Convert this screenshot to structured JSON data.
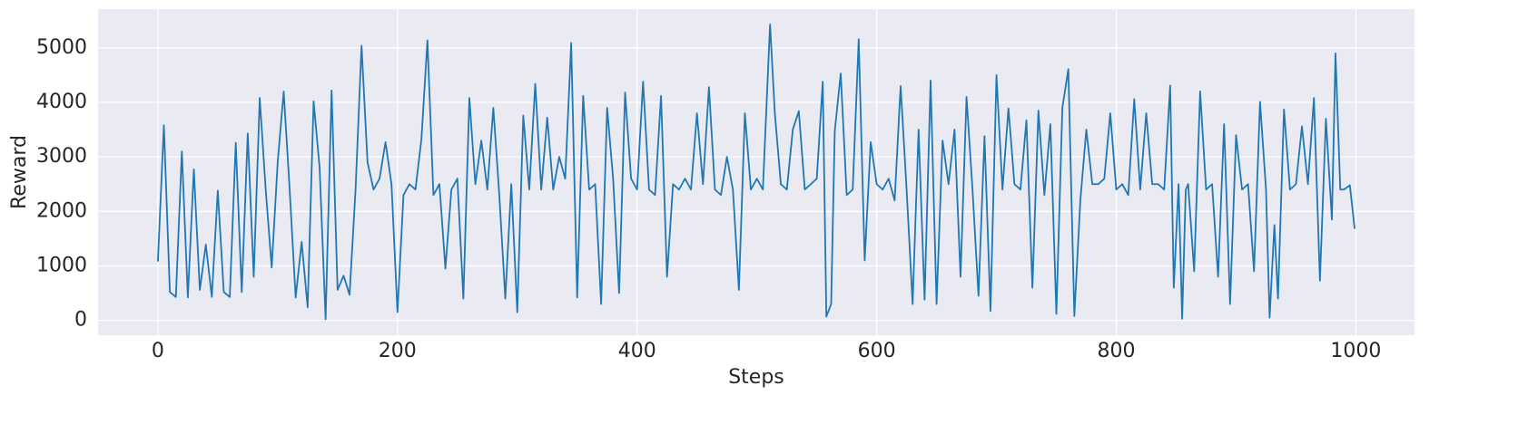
{
  "chart_data": {
    "type": "line",
    "x_label": "Steps",
    "y_label": "Reward",
    "color": "#1f77b4",
    "grid": true,
    "xlim": [
      -49.95,
      1048.95
    ],
    "xticks": [
      0,
      200,
      400,
      600,
      800,
      1000
    ],
    "ylim": [
      -272,
      5712
    ],
    "yticks": [
      0,
      1000,
      2000,
      3000,
      4000,
      5000
    ],
    "x": [
      0,
      5,
      10,
      15,
      20,
      25,
      30,
      35,
      40,
      45,
      50,
      55,
      60,
      65,
      70,
      75,
      80,
      85,
      90,
      95,
      100,
      105,
      110,
      115,
      120,
      125,
      130,
      135,
      140,
      145,
      150,
      155,
      160,
      165,
      170,
      175,
      180,
      185,
      190,
      195,
      200,
      205,
      210,
      215,
      220,
      225,
      230,
      235,
      240,
      245,
      250,
      255,
      260,
      265,
      270,
      275,
      280,
      285,
      290,
      295,
      300,
      305,
      310,
      315,
      320,
      325,
      330,
      335,
      340,
      345,
      350,
      355,
      360,
      365,
      370,
      375,
      380,
      385,
      390,
      395,
      400,
      405,
      410,
      415,
      420,
      425,
      430,
      435,
      440,
      445,
      450,
      455,
      460,
      465,
      470,
      475,
      480,
      485,
      490,
      495,
      500,
      505,
      511,
      515,
      520,
      525,
      530,
      535,
      540,
      545,
      550,
      555,
      558,
      562,
      565,
      570,
      575,
      580,
      585,
      590,
      595,
      600,
      605,
      610,
      615,
      620,
      625,
      630,
      635,
      640,
      645,
      650,
      655,
      660,
      665,
      670,
      675,
      680,
      685,
      690,
      695,
      700,
      705,
      710,
      715,
      720,
      725,
      730,
      735,
      740,
      745,
      750,
      755,
      760,
      765,
      770,
      775,
      780,
      785,
      790,
      795,
      800,
      805,
      810,
      815,
      820,
      825,
      830,
      835,
      840,
      845,
      848,
      852,
      855,
      858,
      860,
      865,
      870,
      875,
      880,
      885,
      890,
      895,
      900,
      905,
      910,
      915,
      920,
      925,
      928,
      932,
      935,
      940,
      945,
      950,
      955,
      960,
      965,
      970,
      975,
      980,
      983,
      987,
      990,
      995,
      999
    ],
    "values": [
      1080,
      3580,
      520,
      430,
      3100,
      420,
      2770,
      560,
      1390,
      430,
      2380,
      520,
      430,
      3260,
      520,
      3430,
      800,
      4080,
      2400,
      970,
      2900,
      4200,
      2400,
      420,
      1440,
      240,
      4020,
      2800,
      20,
      4220,
      560,
      820,
      470,
      2400,
      5040,
      2900,
      2400,
      2600,
      3270,
      2500,
      150,
      2300,
      2500,
      2400,
      3330,
      5140,
      2300,
      2500,
      950,
      2400,
      2600,
      400,
      4080,
      2500,
      3300,
      2400,
      3900,
      2300,
      400,
      2500,
      150,
      3760,
      2400,
      4340,
      2400,
      3720,
      2400,
      3000,
      2600,
      5090,
      420,
      4120,
      2400,
      2500,
      300,
      3900,
      2600,
      500,
      4180,
      2600,
      2400,
      4380,
      2400,
      2300,
      4120,
      800,
      2500,
      2400,
      2600,
      2400,
      3800,
      2500,
      4280,
      2400,
      2300,
      3000,
      2400,
      560,
      3800,
      2400,
      2600,
      2400,
      5430,
      3800,
      2500,
      2400,
      3500,
      3840,
      2400,
      2500,
      2600,
      4380,
      70,
      300,
      3470,
      4530,
      2300,
      2400,
      5160,
      1100,
      3270,
      2500,
      2400,
      2600,
      2200,
      4300,
      2400,
      300,
      3500,
      380,
      4400,
      300,
      3300,
      2500,
      3500,
      800,
      4100,
      2400,
      450,
      3380,
      170,
      4500,
      2400,
      3890,
      2500,
      2400,
      3670,
      600,
      3850,
      2300,
      3600,
      120,
      3900,
      4610,
      80,
      2200,
      3500,
      2500,
      2500,
      2600,
      3800,
      2400,
      2500,
      2300,
      4060,
      2400,
      3800,
      2500,
      2500,
      2400,
      4310,
      600,
      2500,
      30,
      2400,
      2500,
      900,
      4200,
      2400,
      2500,
      800,
      3600,
      300,
      3400,
      2400,
      2500,
      900,
      4010,
      2400,
      50,
      1750,
      400,
      3870,
      2400,
      2500,
      3560,
      2500,
      4080,
      730,
      3700,
      1850,
      4900,
      2400,
      2400,
      2480,
      1680
    ]
  }
}
